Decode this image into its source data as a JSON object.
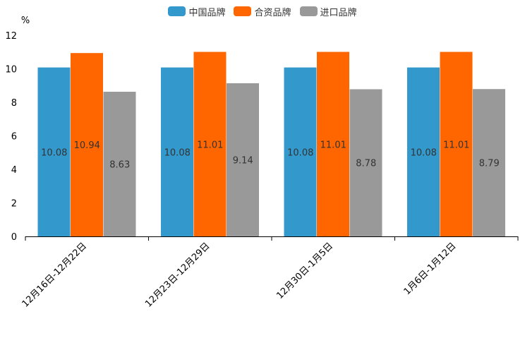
{
  "chart_data": {
    "type": "bar",
    "title": "",
    "ylabel": "%",
    "xlabel": "",
    "ylim": [
      0,
      12
    ],
    "yticks": [
      "0",
      "2",
      "4",
      "6",
      "8",
      "10",
      "12"
    ],
    "categories": [
      "12月16日-12月22日",
      "12月23日-12月29日",
      "12月30日-1月5日",
      "1月6日-1月12日"
    ],
    "series": [
      {
        "name": "中国品牌",
        "color": "#3398CC",
        "values": [
          10.08,
          10.08,
          10.08,
          10.08
        ],
        "labels": [
          "10.08",
          "10.08",
          "10.08",
          "10.08"
        ]
      },
      {
        "name": "合资品牌",
        "color": "#FF6600",
        "values": [
          10.94,
          11.01,
          11.01,
          11.01
        ],
        "labels": [
          "10.94",
          "11.01",
          "11.01",
          "11.01"
        ]
      },
      {
        "name": "进口品牌",
        "color": "#999999",
        "values": [
          8.63,
          9.14,
          8.78,
          8.79
        ],
        "labels": [
          "8.63",
          "9.14",
          "8.78",
          "8.79"
        ]
      }
    ],
    "legend_position": "top-center",
    "grid": false
  }
}
